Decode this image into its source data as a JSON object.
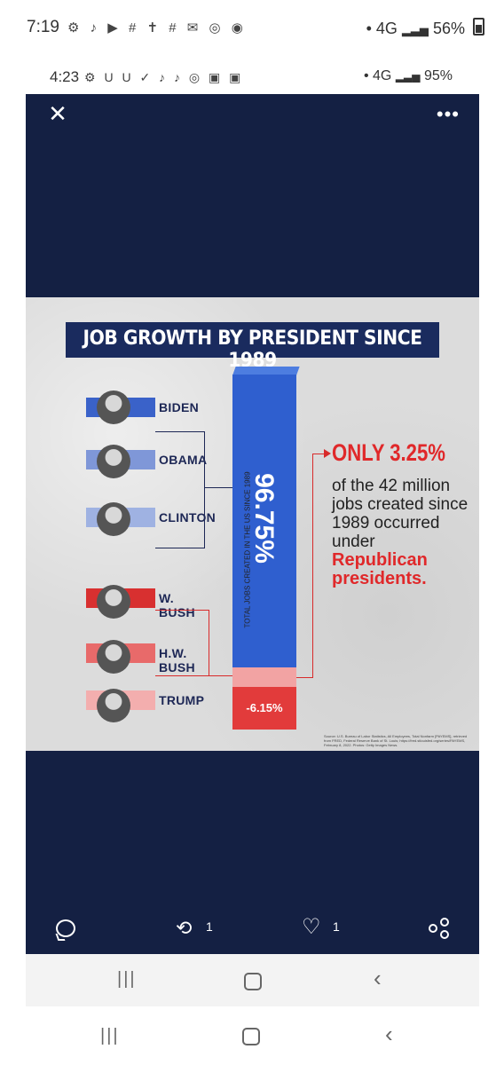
{
  "outer_status": {
    "time": "7:19",
    "icons": "⚙ ♪ ▶ # ✝ # ✉ ◎ ◉",
    "network": "• 4G",
    "battery": "56%"
  },
  "inner_status": {
    "time": "4:23",
    "icons": "⚙ U U ✓ ♪ ♪ ◎ ▣ ▣",
    "network": "• 4G",
    "battery": "95%"
  },
  "viewer": {
    "close_glyph": "✕",
    "more_glyph": "•••"
  },
  "infographic": {
    "title": "JOB GROWTH BY PRESIDENT SINCE 1989",
    "presidents": [
      {
        "name": "BIDEN",
        "color": "#3a62c9"
      },
      {
        "name": "OBAMA",
        "color": "#7f97d8"
      },
      {
        "name": "CLINTON",
        "color": "#9fb2e2"
      },
      {
        "name": "W. BUSH",
        "color": "#d83030"
      },
      {
        "name": "H.W. BUSH",
        "color": "#e86a6a"
      },
      {
        "name": "TRUMP",
        "color": "#f3aeae"
      }
    ],
    "democratic_share": "96.75%",
    "trump_share": "-6.15%",
    "axis_label": "TOTAL JOBS CREATED IN THE US SINCE 1989",
    "callout": {
      "headline": "ONLY 3.25%",
      "body": "of the 42 million jobs created since 1989 occurred under",
      "emphasis": "Republican presidents."
    },
    "source": "Source: U.S. Bureau of Labor Statistics, All Employees, Total Nonfarm [PAYEMS], retrieved from FRED, Federal Reserve Bank of St. Louis; https://fred.stlouisfed.org/series/PAYEMS, February 8, 2022. Photos: Getty Images News."
  },
  "actions": {
    "retweet_count": "1",
    "like_count": "1"
  },
  "nav": {
    "recent_glyph": "|||",
    "back_glyph": "‹"
  }
}
